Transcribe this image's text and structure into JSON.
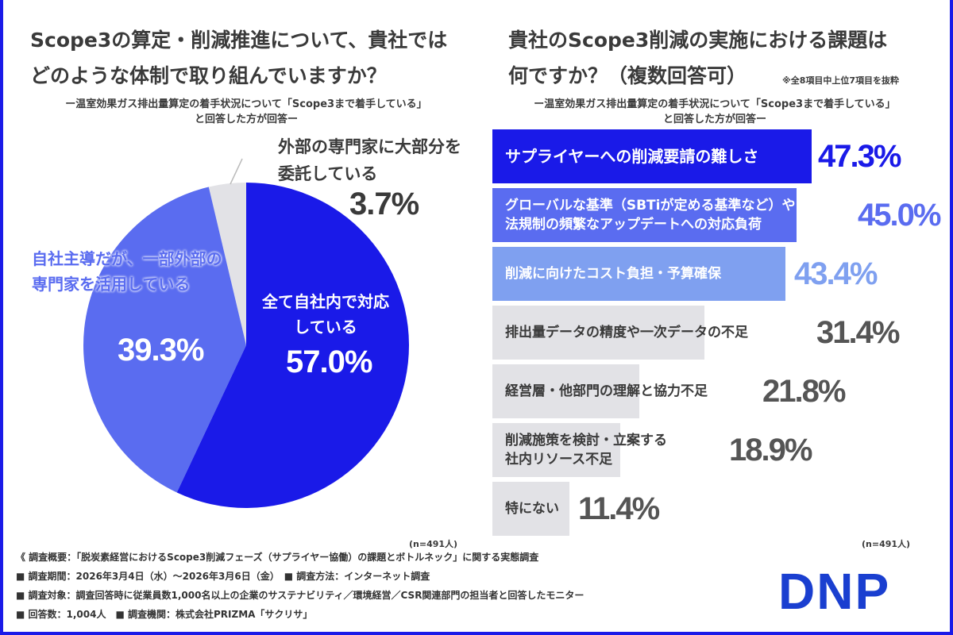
{
  "left": {
    "title": [
      "Scope3の算定・削減推進について、貴社では",
      "どのような体制で取り組んでいますか？"
    ],
    "subtitle": [
      "ー温室効果ガス排出量算定の着手状況について「Scope3まで着手している」",
      "と回答した方が回答ー"
    ],
    "n": "(n=491人)"
  },
  "right": {
    "title": [
      "貴社のScope3削減の実施における課題は",
      "何ですか？（複数回答可）"
    ],
    "note": "※全8項目中上位7項目を抜粋",
    "subtitle": [
      "ー温室効果ガス排出量算定の着手状況について「Scope3まで着手している」",
      "と回答した方が回答ー"
    ],
    "n": "(n=491人)"
  },
  "chart_data": [
    {
      "type": "pie",
      "slices": [
        {
          "label": "全て自社内で対応している",
          "value": 57.0,
          "value_label": "57.0%",
          "color": "#1a1ae8"
        },
        {
          "label": "自社主導だが、一部外部の専門家を活用している",
          "value": 39.3,
          "value_label": "39.3%",
          "color": "#5a6cf0"
        },
        {
          "label": "外部の専門家に大部分を委託している",
          "value": 3.7,
          "value_label": "3.7%",
          "color": "#e2e2e6"
        }
      ]
    },
    {
      "type": "bar",
      "orientation": "horizontal",
      "categories": [
        "サプライヤーへの削減要請の難しさ",
        "グローバルな基準（SBTiが定める基準など）や\n法規制の頻繁なアップデートへの対応負荷",
        "削減に向けたコスト負担・予算確保",
        "排出量データの精度や一次データの不足",
        "経営層・他部門の理解と協力不足",
        "削減施策を検討・立案する\n社内リソース不足",
        "特にない"
      ],
      "values": [
        47.3,
        45.0,
        43.4,
        31.4,
        21.8,
        18.9,
        11.4
      ],
      "value_labels": [
        "47.3%",
        "45.0%",
        "43.4%",
        "31.4%",
        "21.8%",
        "18.9%",
        "11.4%"
      ],
      "colors": [
        "#1a1ae8",
        "#5a6cf0",
        "#7fa0f0",
        "#e2e2e6",
        "#e2e2e6",
        "#e2e2e6",
        "#e2e2e6"
      ],
      "label_colors": [
        "#ffffff",
        "#ffffff",
        "#ffffff",
        "#3a3a3a",
        "#3a3a3a",
        "#3a3a3a",
        "#3a3a3a"
      ],
      "value_colors": [
        "#1a1ae8",
        "#5a6cf0",
        "#7fa0f0",
        "#555555",
        "#555555",
        "#555555",
        "#555555"
      ]
    }
  ],
  "footer": [
    "《 調査概要：「脱炭素経営におけるScope3削減フェーズ（サプライヤー協働）の課題とボトルネック」に関する実態調査",
    "■ 調査期間：2026年3月4日（水）〜2026年3月6日（金）　■ 調査方法：インターネット調査",
    "■ 調査対象：調査回答時に従業員数1,000名以上の企業のサステナビリティ／環境経営／CSR関連部門の担当者と回答したモニター",
    "■ 回答数：1,004人　■ 調査機関：株式会社PRIZMA「サクリサ」"
  ],
  "logo": "DNP"
}
